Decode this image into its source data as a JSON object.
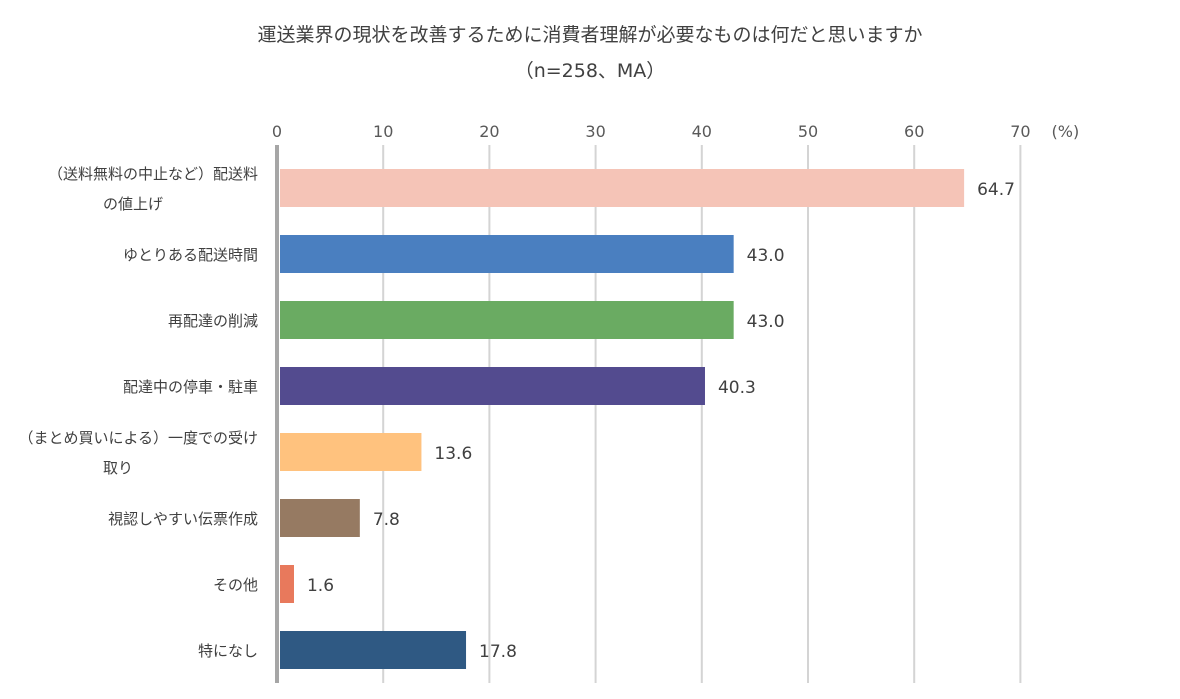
{
  "chart_data": {
    "type": "bar",
    "orientation": "horizontal",
    "title": "運送業界の現状を改善するために消費者理解が必要なものは何だと思いますか",
    "subtitle": "（n=258、MA）",
    "unit_label": "(%)",
    "xlim": [
      0,
      70
    ],
    "ticks": [
      0,
      10,
      20,
      30,
      40,
      50,
      60,
      70
    ],
    "tick_labels": [
      "0",
      "10",
      "20",
      "30",
      "40",
      "50",
      "60",
      "70"
    ],
    "grid": true,
    "categories": [
      [
        "（送料無料の中止など）配送料",
        "の値上げ"
      ],
      [
        "ゆとりある配送時間"
      ],
      [
        "再配達の削減"
      ],
      [
        "配達中の停車・駐車"
      ],
      [
        "（まとめ買いによる）一度での受け",
        "取り"
      ],
      [
        "視認しやすい伝票作成"
      ],
      [
        "その他"
      ],
      [
        "特になし"
      ]
    ],
    "values": [
      64.7,
      43.0,
      43.0,
      40.3,
      13.6,
      7.8,
      1.6,
      17.8
    ],
    "value_labels": [
      "64.7",
      "43.0",
      "43.0",
      "40.3",
      "13.6",
      "7.8",
      "1.6",
      "17.8"
    ],
    "colors": [
      "#f5c4b7",
      "#4a7fc0",
      "#6aab62",
      "#534b8f",
      "#ffc27e",
      "#967a62",
      "#e8795c",
      "#2f5983"
    ]
  }
}
